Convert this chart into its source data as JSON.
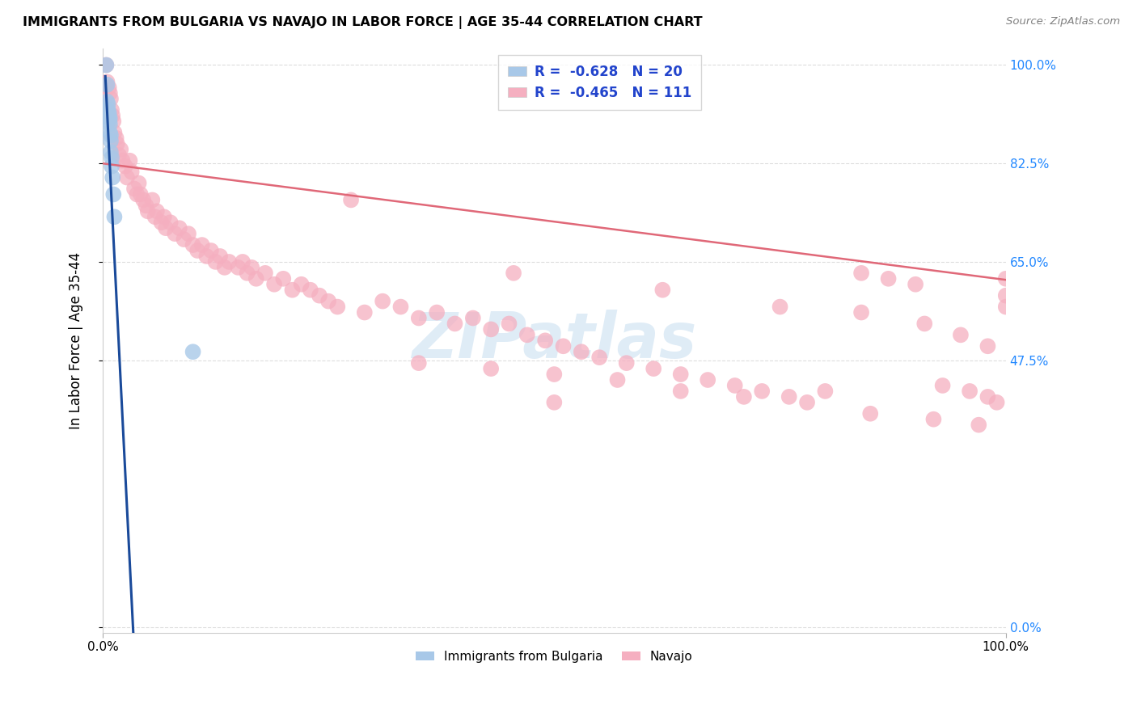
{
  "title": "IMMIGRANTS FROM BULGARIA VS NAVAJO IN LABOR FORCE | AGE 35-44 CORRELATION CHART",
  "source": "Source: ZipAtlas.com",
  "ylabel": "In Labor Force | Age 35-44",
  "xmin": 0.0,
  "xmax": 1.0,
  "ymin": 0.0,
  "ymax": 1.0,
  "ytick_positions": [
    0.0,
    0.475,
    0.65,
    0.825,
    1.0
  ],
  "ytick_labels": [
    "0.0%",
    "47.5%",
    "65.0%",
    "82.5%",
    "100.0%"
  ],
  "xtick_labels": [
    "0.0%",
    "100.0%"
  ],
  "legend_r_bulgaria": "-0.628",
  "legend_n_bulgaria": "20",
  "legend_r_navajo": "-0.465",
  "legend_n_navajo": "111",
  "bulgaria_color": "#a8c8e8",
  "navajo_color": "#f5afc0",
  "bulgaria_line_color": "#1a4a9a",
  "navajo_line_color": "#e06878",
  "watermark_text": "ZIPatlas",
  "watermark_color": "#c5ddf0",
  "bulgaria_x": [
    0.004,
    0.005,
    0.005,
    0.006,
    0.006,
    0.007,
    0.007,
    0.007,
    0.008,
    0.008,
    0.008,
    0.009,
    0.009,
    0.009,
    0.01,
    0.01,
    0.011,
    0.012,
    0.013,
    0.1
  ],
  "bulgaria_y": [
    1.0,
    0.965,
    0.935,
    0.93,
    0.92,
    0.915,
    0.91,
    0.9,
    0.905,
    0.895,
    0.88,
    0.875,
    0.865,
    0.845,
    0.835,
    0.82,
    0.8,
    0.77,
    0.73,
    0.49
  ],
  "navajo_x": [
    0.003,
    0.004,
    0.005,
    0.007,
    0.008,
    0.009,
    0.01,
    0.011,
    0.012,
    0.013,
    0.015,
    0.016,
    0.018,
    0.02,
    0.022,
    0.025,
    0.027,
    0.03,
    0.032,
    0.035,
    0.038,
    0.04,
    0.042,
    0.045,
    0.048,
    0.05,
    0.055,
    0.058,
    0.06,
    0.065,
    0.068,
    0.07,
    0.075,
    0.08,
    0.085,
    0.09,
    0.095,
    0.1,
    0.105,
    0.11,
    0.115,
    0.12,
    0.125,
    0.13,
    0.135,
    0.14,
    0.15,
    0.155,
    0.16,
    0.165,
    0.17,
    0.18,
    0.19,
    0.2,
    0.21,
    0.22,
    0.23,
    0.24,
    0.25,
    0.26,
    0.275,
    0.29,
    0.31,
    0.33,
    0.35,
    0.37,
    0.39,
    0.41,
    0.43,
    0.45,
    0.47,
    0.49,
    0.51,
    0.53,
    0.55,
    0.58,
    0.61,
    0.64,
    0.67,
    0.7,
    0.73,
    0.76,
    0.8,
    0.84,
    0.87,
    0.9,
    0.93,
    0.96,
    0.98,
    0.99,
    0.35,
    0.43,
    0.5,
    0.57,
    0.64,
    0.71,
    0.78,
    0.85,
    0.92,
    0.97,
    0.455,
    0.62,
    0.75,
    0.84,
    0.91,
    0.95,
    0.98,
    1.0,
    1.0,
    1.0,
    0.5
  ],
  "navajo_y": [
    0.93,
    1.0,
    0.97,
    0.96,
    0.95,
    0.94,
    0.92,
    0.91,
    0.9,
    0.88,
    0.87,
    0.86,
    0.84,
    0.85,
    0.83,
    0.82,
    0.8,
    0.83,
    0.81,
    0.78,
    0.77,
    0.79,
    0.77,
    0.76,
    0.75,
    0.74,
    0.76,
    0.73,
    0.74,
    0.72,
    0.73,
    0.71,
    0.72,
    0.7,
    0.71,
    0.69,
    0.7,
    0.68,
    0.67,
    0.68,
    0.66,
    0.67,
    0.65,
    0.66,
    0.64,
    0.65,
    0.64,
    0.65,
    0.63,
    0.64,
    0.62,
    0.63,
    0.61,
    0.62,
    0.6,
    0.61,
    0.6,
    0.59,
    0.58,
    0.57,
    0.76,
    0.56,
    0.58,
    0.57,
    0.55,
    0.56,
    0.54,
    0.55,
    0.53,
    0.54,
    0.52,
    0.51,
    0.5,
    0.49,
    0.48,
    0.47,
    0.46,
    0.45,
    0.44,
    0.43,
    0.42,
    0.41,
    0.42,
    0.63,
    0.62,
    0.61,
    0.43,
    0.42,
    0.41,
    0.4,
    0.47,
    0.46,
    0.45,
    0.44,
    0.42,
    0.41,
    0.4,
    0.38,
    0.37,
    0.36,
    0.63,
    0.6,
    0.57,
    0.56,
    0.54,
    0.52,
    0.5,
    0.62,
    0.59,
    0.57,
    0.4
  ],
  "navajo_line_x0": 0.0,
  "navajo_line_y0": 0.825,
  "navajo_line_x1": 1.0,
  "navajo_line_y1": 0.618,
  "bulgaria_line_x0": 0.003,
  "bulgaria_line_y0": 0.98,
  "bulgaria_line_x1": 0.013,
  "bulgaria_line_y1": 0.66
}
